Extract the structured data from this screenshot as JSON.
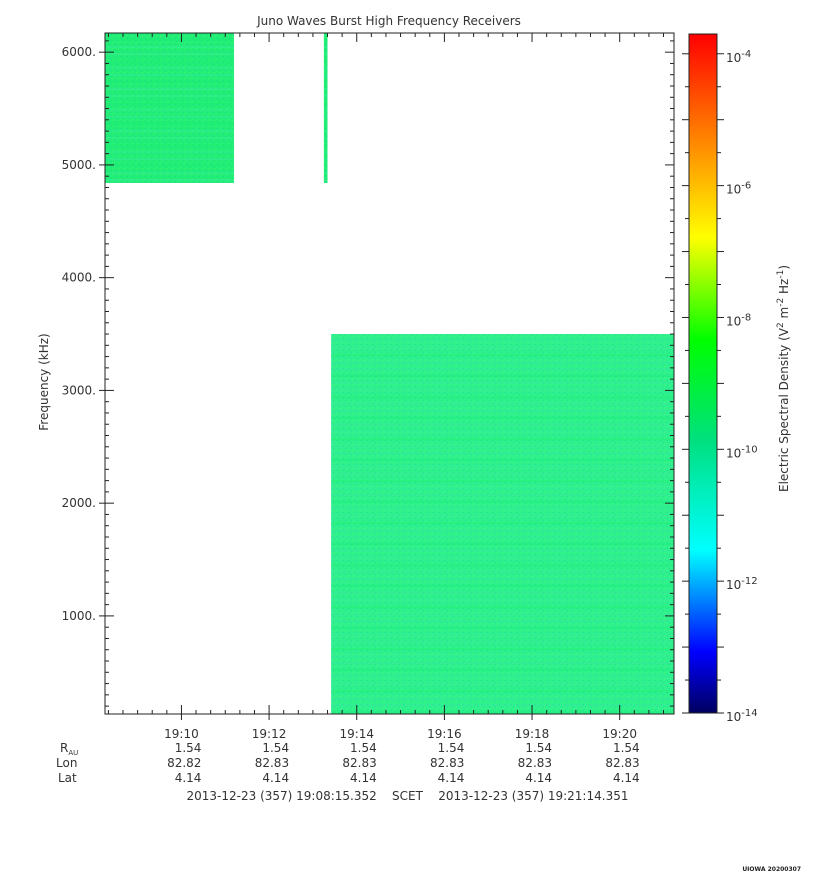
{
  "chart_data": {
    "type": "heatmap",
    "title": "Juno Waves Burst High Frequency Receivers",
    "ylabel": "Frequency (kHz)",
    "colorbar_label_main": "Electric Spectral Density (V",
    "colorbar_label_sup1": "2",
    "colorbar_label_mid": " m",
    "colorbar_label_sup2": "-2",
    "colorbar_label_mid2": " Hz",
    "colorbar_label_sup3": "-1",
    "colorbar_label_end": ")",
    "xlim": [
      "19:08:15.352",
      "19:21:14.351"
    ],
    "ylim": [
      130,
      6170
    ],
    "x_ticks": [
      "19:10",
      "19:12",
      "19:14",
      "19:16",
      "19:18",
      "19:20"
    ],
    "y_ticks": [
      "1000.",
      "2000.",
      "3000.",
      "4000.",
      "5000.",
      "6000."
    ],
    "y_tick_values": [
      1000,
      2000,
      3000,
      4000,
      5000,
      6000
    ],
    "colorbar_ticks": [
      {
        "base": "10",
        "exp": "-4"
      },
      {
        "base": "10",
        "exp": "-6"
      },
      {
        "base": "10",
        "exp": "-8"
      },
      {
        "base": "10",
        "exp": "-10"
      },
      {
        "base": "10",
        "exp": "-12"
      },
      {
        "base": "10",
        "exp": "-14"
      }
    ],
    "colorbar_tick_exponents": [
      -4,
      -6,
      -8,
      -10,
      -12,
      -14
    ],
    "colorbar_range_log10": [
      -14,
      -3.7
    ],
    "colormap": [
      "#000080",
      "#0000ff",
      "#00ffff",
      "#00e070",
      "#00ff00",
      "#ffff00",
      "#ff8000",
      "#ff0000"
    ],
    "regions": [
      {
        "t_start": "19:08:15",
        "t_end": "19:11:12",
        "f_start": 4840,
        "f_end": 6170,
        "level_log10": -9.3,
        "color": "#22ee77"
      },
      {
        "t_start": "19:13:15",
        "t_end": "19:13:20",
        "f_start": 4840,
        "f_end": 6170,
        "level_log10": -9.3,
        "color": "#22ee77"
      },
      {
        "t_start": "19:13:25",
        "t_end": "19:21:14",
        "f_start": 130,
        "f_end": 3500,
        "level_log10": -9.6,
        "color": "#2ef08c"
      }
    ]
  },
  "ephemeris": {
    "row_labels": {
      "rau": "R",
      "rau_sub": "AU",
      "lon": "Lon",
      "lat": "Lat"
    },
    "rau": [
      "1.54",
      "1.54",
      "1.54",
      "1.54",
      "1.54",
      "1.54"
    ],
    "lon": [
      "82.82",
      "82.83",
      "82.83",
      "82.83",
      "82.83",
      "82.83"
    ],
    "lat": [
      "4.14",
      "4.14",
      "4.14",
      "4.14",
      "4.14",
      "4.14"
    ]
  },
  "time_span": {
    "start": "2013-12-23 (357) 19:08:15.352",
    "mid": "SCET",
    "end": "2013-12-23 (357) 19:21:14.351"
  },
  "stamp": "UIOWA 20200307"
}
